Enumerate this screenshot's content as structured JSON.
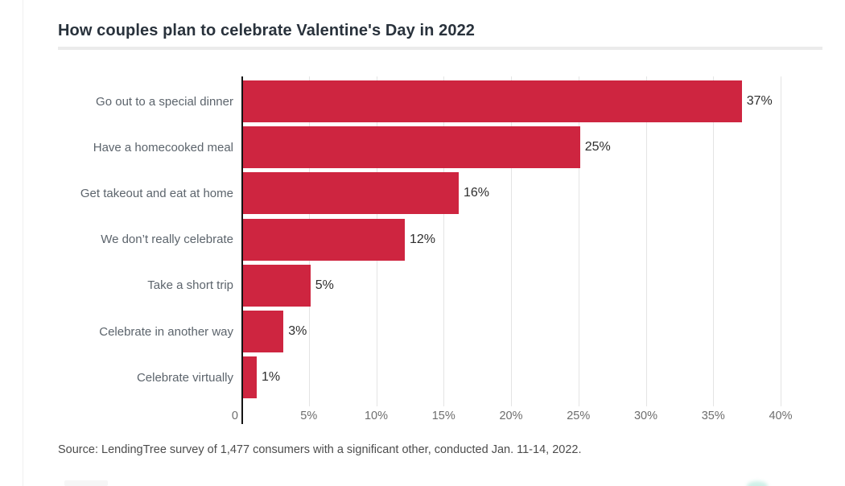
{
  "title": "How couples plan to celebrate Valentine's Day in 2022",
  "source_note": "Source: LendingTree survey of 1,477 consumers with a significant other, conducted Jan. 11-14, 2022.",
  "chart_data": {
    "type": "bar",
    "orientation": "horizontal",
    "categories": [
      "Go out to a special dinner",
      "Have a homecooked meal",
      "Get takeout and eat at home",
      "We don’t really celebrate",
      "Take a short trip",
      "Celebrate in another way",
      "Celebrate virtually"
    ],
    "values": [
      37,
      25,
      16,
      12,
      5,
      3,
      1
    ],
    "value_labels": [
      "37%",
      "25%",
      "16%",
      "12%",
      "5%",
      "3%",
      "1%"
    ],
    "title": "How couples plan to celebrate Valentine's Day in 2022",
    "xlabel": "",
    "ylabel": "",
    "xlim": [
      0,
      40
    ],
    "x_ticks": [
      0,
      5,
      10,
      15,
      20,
      25,
      30,
      35,
      40
    ],
    "x_tick_labels": [
      "0",
      "5%",
      "10%",
      "15%",
      "20%",
      "25%",
      "30%",
      "35%",
      "40%"
    ],
    "grid": "vertical-on",
    "legend": "none"
  },
  "colors": {
    "bar": "#ce2540",
    "title_text": "#29323c",
    "category_text": "#5c646c",
    "value_text": "#2e2e2e",
    "tick_text": "#6d6d6d",
    "axis_line": "#141414",
    "gridline": "#e4e4e4",
    "divider": "#ebebeb",
    "source_text": "#4c4c4c",
    "logo_fragment_teal": "#9fe2d2"
  }
}
